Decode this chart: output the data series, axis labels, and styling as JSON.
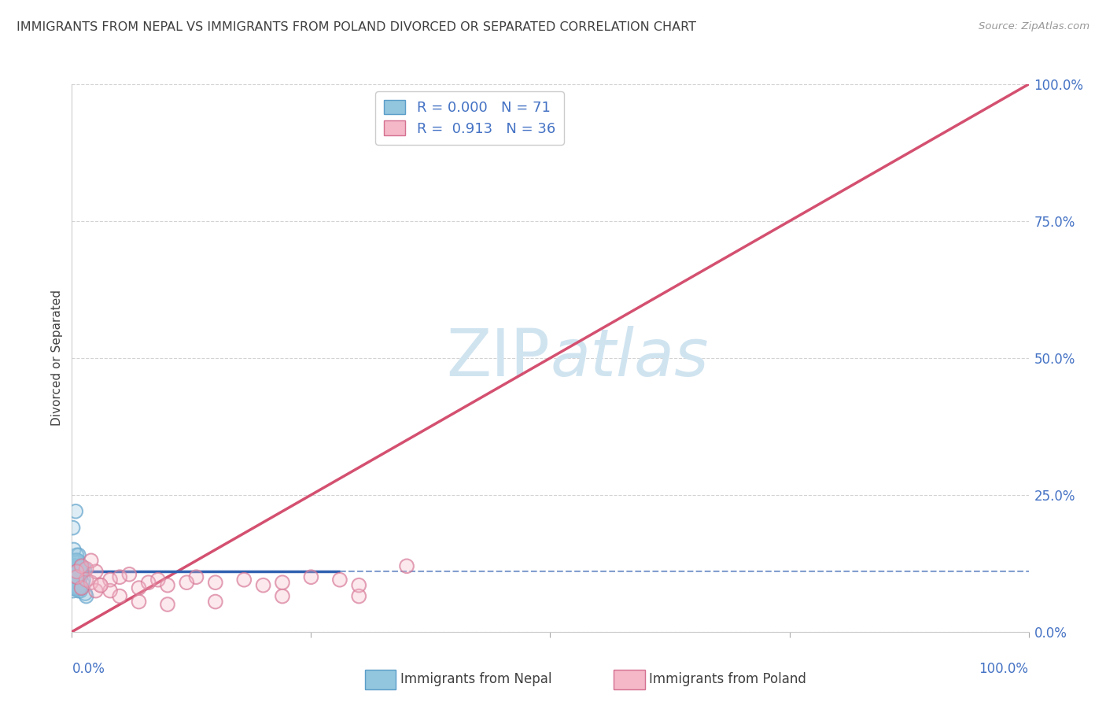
{
  "title": "IMMIGRANTS FROM NEPAL VS IMMIGRANTS FROM POLAND DIVORCED OR SEPARATED CORRELATION CHART",
  "source": "Source: ZipAtlas.com",
  "ylabel": "Divorced or Separated",
  "legend_label_blue": "Immigrants from Nepal",
  "legend_label_pink": "Immigrants from Poland",
  "blue_color": "#92c5de",
  "blue_edge_color": "#5b9ec9",
  "pink_color": "#f4b8c8",
  "pink_edge_color": "#d47090",
  "blue_line_color": "#3060b0",
  "pink_line_color": "#d45070",
  "grid_color": "#c8c8c8",
  "watermark_color": "#d0e4f0",
  "ytick_labels": [
    "0.0%",
    "25.0%",
    "50.0%",
    "75.0%",
    "100.0%"
  ],
  "ytick_values": [
    0.0,
    0.25,
    0.5,
    0.75,
    1.0
  ],
  "xlim": [
    0.0,
    1.0
  ],
  "ylim": [
    0.0,
    1.0
  ],
  "nepal_x": [
    0.0,
    0.001,
    0.002,
    0.003,
    0.004,
    0.005,
    0.006,
    0.007,
    0.008,
    0.009,
    0.001,
    0.002,
    0.003,
    0.004,
    0.005,
    0.006,
    0.007,
    0.008,
    0.009,
    0.01,
    0.001,
    0.002,
    0.003,
    0.004,
    0.005,
    0.006,
    0.007,
    0.008,
    0.009,
    0.01,
    0.001,
    0.002,
    0.003,
    0.004,
    0.005,
    0.006,
    0.007,
    0.008,
    0.009,
    0.011,
    0.001,
    0.002,
    0.003,
    0.004,
    0.005,
    0.006,
    0.007,
    0.008,
    0.009,
    0.012,
    0.001,
    0.002,
    0.003,
    0.004,
    0.005,
    0.006,
    0.007,
    0.008,
    0.009,
    0.013,
    0.001,
    0.002,
    0.003,
    0.004,
    0.005,
    0.006,
    0.007,
    0.008,
    0.009,
    0.014,
    0.015
  ],
  "nepal_y": [
    0.11,
    0.12,
    0.09,
    0.13,
    0.1,
    0.14,
    0.115,
    0.105,
    0.11,
    0.12,
    0.08,
    0.1,
    0.115,
    0.09,
    0.13,
    0.105,
    0.12,
    0.09,
    0.1,
    0.11,
    0.13,
    0.1,
    0.09,
    0.12,
    0.11,
    0.08,
    0.14,
    0.1,
    0.11,
    0.12,
    0.19,
    0.15,
    0.09,
    0.22,
    0.11,
    0.13,
    0.1,
    0.08,
    0.12,
    0.09,
    0.1,
    0.12,
    0.11,
    0.09,
    0.13,
    0.1,
    0.08,
    0.11,
    0.085,
    0.095,
    0.1,
    0.09,
    0.11,
    0.12,
    0.1,
    0.085,
    0.09,
    0.095,
    0.1,
    0.115,
    0.075,
    0.08,
    0.085,
    0.09,
    0.095,
    0.1,
    0.075,
    0.08,
    0.075,
    0.07,
    0.065
  ],
  "poland_x": [
    0.005,
    0.01,
    0.015,
    0.02,
    0.025,
    0.03,
    0.04,
    0.05,
    0.06,
    0.07,
    0.08,
    0.09,
    0.1,
    0.12,
    0.13,
    0.15,
    0.18,
    0.2,
    0.22,
    0.25,
    0.28,
    0.3,
    0.35,
    0.005,
    0.01,
    0.015,
    0.02,
    0.025,
    0.03,
    0.04,
    0.05,
    0.07,
    0.1,
    0.15,
    0.22,
    0.3
  ],
  "poland_y": [
    0.1,
    0.08,
    0.095,
    0.09,
    0.11,
    0.085,
    0.095,
    0.1,
    0.105,
    0.08,
    0.09,
    0.095,
    0.085,
    0.09,
    0.1,
    0.09,
    0.095,
    0.085,
    0.09,
    0.1,
    0.095,
    0.085,
    0.12,
    0.11,
    0.12,
    0.115,
    0.13,
    0.075,
    0.085,
    0.075,
    0.065,
    0.055,
    0.05,
    0.055,
    0.065,
    0.065
  ],
  "nepal_blue_line_x": [
    0.0,
    0.3
  ],
  "nepal_blue_line_y": [
    0.11,
    0.11
  ],
  "poland_pink_line_x_start": 0.0,
  "poland_pink_line_x_end": 1.0,
  "poland_pink_line_y_start": 0.0,
  "poland_pink_line_y_end": 1.0,
  "background_color": "#ffffff",
  "title_color": "#404040",
  "tick_color": "#4472c4",
  "legend_r_color": "#000000",
  "legend_n_color": "#4472c4"
}
